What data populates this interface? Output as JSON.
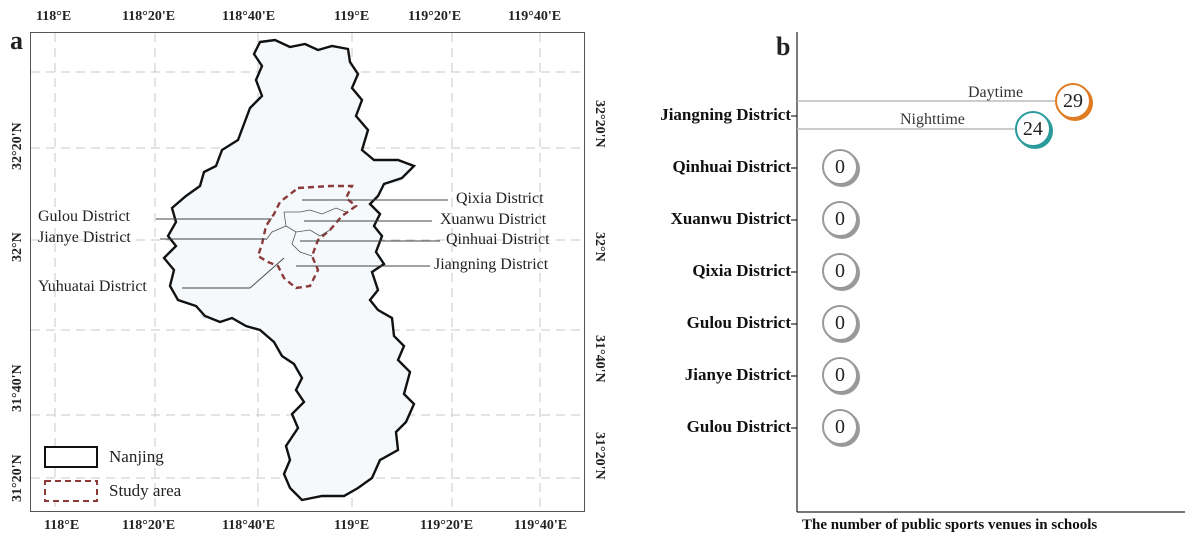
{
  "panel_a": {
    "letter": "a",
    "lon_labels": [
      "118°E",
      "118°20'E",
      "118°40'E",
      "119°E",
      "119°20'E",
      "119°40'E"
    ],
    "lat_labels": [
      "32°20'N",
      "32°N",
      "31°40'N",
      "31°20'N"
    ],
    "district_labels_left": [
      "Gulou District",
      "Jianye District",
      "Yuhuatai District"
    ],
    "district_labels_right": [
      "Qixia District",
      "Xuanwu District",
      "Qinhuai District",
      "Jiangning District"
    ],
    "legend": [
      {
        "label": "Nanjing",
        "style": "solid-black"
      },
      {
        "label": "Study area",
        "style": "dashed-brown"
      }
    ],
    "colors": {
      "boundary": "#111111",
      "study_area": "#8b3a3a",
      "water": "#dbe9f6",
      "grid": "#c8c8c8"
    }
  },
  "panel_b": {
    "letter": "b",
    "axis_title": "The number of public sports venues in schools",
    "colors": {
      "daytime": "#e07b22",
      "nighttime": "#2a9a9a",
      "zero": "#999999"
    },
    "chart_data": {
      "type": "bubble-lollipop",
      "categories": [
        "Jiangning District",
        "Qinhuai District",
        "Xuanwu District",
        "Qixia District",
        "Gulou District",
        "Jianye District",
        "Gulou District"
      ],
      "series": [
        {
          "name": "Daytime",
          "values": [
            29,
            null,
            null,
            null,
            null,
            null,
            null
          ]
        },
        {
          "name": "Nighttime",
          "values": [
            24,
            null,
            null,
            null,
            null,
            null,
            null
          ]
        }
      ],
      "zero_values": [
        null,
        0,
        0,
        0,
        0,
        0,
        0
      ],
      "xlabel": "The number of public sports venues in schools"
    }
  }
}
